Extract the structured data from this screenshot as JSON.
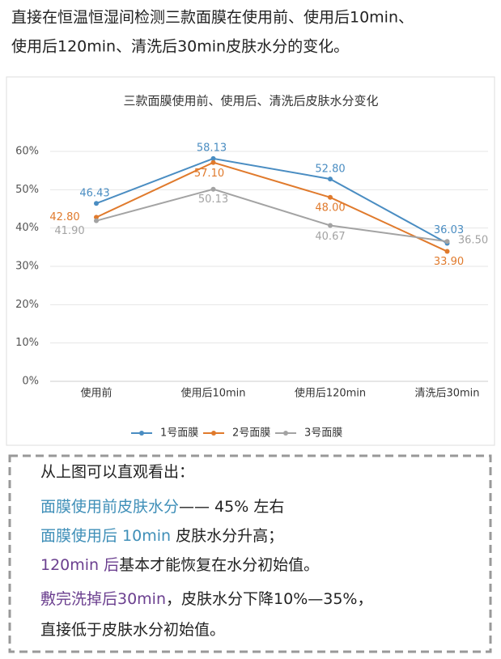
{
  "intro": [
    "直接在恒温恒湿间检测三款面膜在使用前、使用后10min、",
    "使用后120min、清洗后30min皮肤水分的变化。"
  ],
  "chart_data": {
    "type": "line",
    "title": "三款面膜使用前、使用后、清洗后皮肤水分变化",
    "categories": [
      "使用前",
      "使用后10min",
      "使用后120min",
      "清洗后30min"
    ],
    "series": [
      {
        "name": "1号面膜",
        "color": "#4a8dc2",
        "values": [
          46.43,
          58.13,
          52.8,
          36.03
        ],
        "value_labels": [
          "46.43",
          "58.13",
          "52.80",
          "36.03"
        ]
      },
      {
        "name": "2号面膜",
        "color": "#e07a2c",
        "values": [
          42.8,
          57.1,
          48.0,
          33.9
        ],
        "value_labels": [
          "42.80",
          "57.10",
          "48.00",
          "33.90"
        ]
      },
      {
        "name": "3号面膜",
        "color": "#a3a3a3",
        "values": [
          41.9,
          50.13,
          40.67,
          36.5
        ],
        "value_labels": [
          "41.90",
          "50.13",
          "40.67",
          "36.50"
        ]
      }
    ],
    "ylim": [
      0,
      60
    ],
    "yticks": [
      {
        "value": 0,
        "label": "0%"
      },
      {
        "value": 10,
        "label": "10%"
      },
      {
        "value": 20,
        "label": "20%"
      },
      {
        "value": 30,
        "label": "30%"
      },
      {
        "value": 40,
        "label": "40%"
      },
      {
        "value": 50,
        "label": "50%"
      },
      {
        "value": 60,
        "label": "60%"
      }
    ],
    "grid": true,
    "legend": "bottom"
  },
  "notes": [
    [
      "从上图可以直观看出："
    ],
    [
      "面膜使用前皮肤水分",
      "—— 45% 左右"
    ],
    [
      "面膜使用后 10min",
      " 皮肤水分升高；"
    ],
    [
      "120min 后",
      "基本才能恢复在水分初始值。"
    ],
    [
      "敷完洗掉后30min",
      "，皮肤水分下降10%—35%，"
    ],
    [
      "直接低于皮肤水分初始值。"
    ]
  ]
}
